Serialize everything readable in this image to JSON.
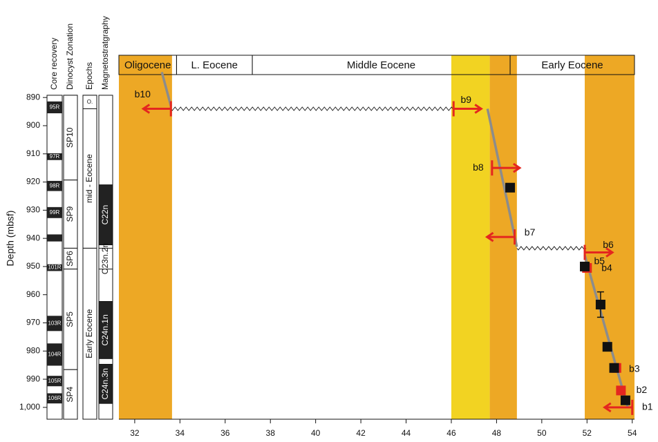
{
  "chart_data": {
    "type": "age-depth",
    "y_label": "Depth (mbsf)",
    "columns": [
      "Core recovery",
      "Dinocyst Zonation",
      "Epochs",
      "Magnetostratgraphy"
    ],
    "xlim": [
      31.3,
      54.1
    ],
    "xticks": [
      32,
      34,
      36,
      38,
      40,
      42,
      44,
      46,
      48,
      50,
      52,
      54
    ],
    "ylim": [
      875,
      1004.2
    ],
    "yticks": [
      890,
      900,
      910,
      920,
      930,
      940,
      950,
      960,
      970,
      980,
      990,
      {
        "value": 1000,
        "label": "1,000"
      }
    ],
    "bands": [
      {
        "from": 31.3,
        "to": 33.65,
        "color": "#eda825"
      },
      {
        "from": 46.0,
        "to": 47.7,
        "color": "#f2d322"
      },
      {
        "from": 47.7,
        "to": 48.9,
        "color": "#eda825"
      },
      {
        "from": 51.9,
        "to": 54.1,
        "color": "#eda825"
      }
    ],
    "epochs": [
      {
        "name": "Oligocene",
        "from": 31.3,
        "to": 33.85
      },
      {
        "name": "L. Eocene",
        "from": 33.85,
        "to": 37.2
      },
      {
        "name": "Middle Eocene",
        "from": 37.2,
        "to": 48.6
      },
      {
        "name": "Early Eocene",
        "from": 48.6,
        "to": 54.1
      }
    ],
    "age_depth": {
      "color": "#8c8c8c",
      "x": [
        33.2,
        33.6,
        null,
        47.6,
        48.9,
        null,
        51.9,
        53.8
      ],
      "y": [
        881,
        893,
        null,
        894,
        943,
        null,
        946,
        1000
      ]
    },
    "hiatuses": [
      {
        "from": 33.6,
        "to": 46.1,
        "depth": 894
      },
      {
        "from": 48.9,
        "to": 51.9,
        "depth": 943.5
      }
    ],
    "datums": [
      {
        "name": "b10",
        "age": 33.6,
        "depth": 894,
        "arrow": "left"
      },
      {
        "name": "b9",
        "age": 46.1,
        "depth": 894,
        "arrow": "right"
      },
      {
        "name": "b8",
        "age": 47.8,
        "depth": 915,
        "arrow": "right"
      },
      {
        "name": "b7",
        "age": 48.8,
        "depth": 939.5,
        "arrow": "left"
      },
      {
        "name": "b6",
        "age": 51.9,
        "depth": 945,
        "arrow": "right"
      },
      {
        "name": "b1",
        "age": 54.0,
        "depth": 1000,
        "arrow": "left"
      }
    ],
    "arrow_color": "#e4261f",
    "points": [
      {
        "color": "#e4261f",
        "x": [
          52.0,
          53.3,
          53.5
        ],
        "y": [
          950.5,
          986,
          994
        ],
        "labels": [
          "b5",
          "b3",
          "b2"
        ]
      },
      {
        "color": "#111111",
        "x": [
          48.6,
          51.9,
          52.6,
          52.9,
          53.2,
          53.7
        ],
        "y": [
          922,
          950,
          963.5,
          978.5,
          986,
          997.5
        ],
        "yerr": [
          null,
          null,
          4.5,
          null,
          null,
          null
        ],
        "labels": [
          null,
          "b4",
          null,
          null,
          null,
          null
        ]
      }
    ],
    "cores": [
      {
        "name": "95R",
        "top": 891.4,
        "bottom": 895.6
      },
      {
        "name": "97R",
        "top": 909.8,
        "bottom": 912.2
      },
      {
        "name": "98R",
        "top": 919.6,
        "bottom": 923.2
      },
      {
        "name": "99R",
        "top": 928.9,
        "bottom": 932.8
      },
      {
        "name": null,
        "top": 938.6,
        "bottom": 941.1
      },
      {
        "name": "101R",
        "top": 949.2,
        "bottom": 951.6
      },
      {
        "name": "103R",
        "top": 967.5,
        "bottom": 972.9
      },
      {
        "name": "104R",
        "top": 977.3,
        "bottom": 985.2
      },
      {
        "name": "105R",
        "top": 988.8,
        "bottom": 992.5
      },
      {
        "name": "106R",
        "top": 995.0,
        "bottom": 998.6
      }
    ],
    "zones": [
      {
        "name": "SP10",
        "top": 889.2,
        "bottom": 919.3
      },
      {
        "name": "SP9",
        "top": 919.3,
        "bottom": 943.5
      },
      {
        "name": "SP6",
        "top": 943.5,
        "bottom": 950.9
      },
      {
        "name": "SP5",
        "top": 950.9,
        "bottom": 986.6
      },
      {
        "name": "SP4",
        "top": 986.6,
        "bottom": 1004.2
      }
    ],
    "epoch_column": [
      {
        "name": "O.",
        "top": 889.2,
        "bottom": 894
      },
      {
        "name": "mid - Eocene",
        "top": 894,
        "bottom": 943.5
      },
      {
        "name": "Early Eocene",
        "top": 943.5,
        "bottom": 1004.2
      }
    ],
    "chrons": [
      {
        "name": "C22n",
        "top": 921,
        "bottom": 942.3,
        "color": "#222222"
      },
      {
        "name": "C23n.2n",
        "top": 943.5,
        "bottom": 950.9,
        "color": "#ffffff"
      },
      {
        "name": "C24n.1n",
        "top": 962.4,
        "bottom": 982.7,
        "color": "#222222"
      },
      {
        "name": "C24n.3n",
        "top": 984.7,
        "bottom": 998.6,
        "color": "#222222"
      }
    ]
  }
}
